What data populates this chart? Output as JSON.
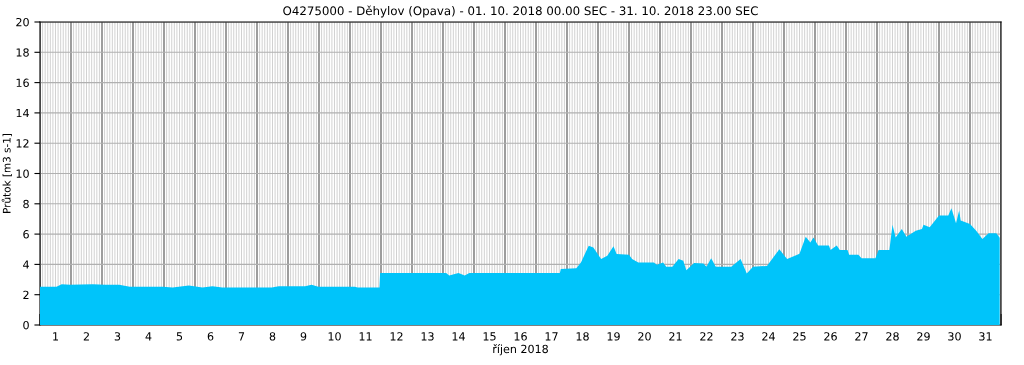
{
  "chart_data": {
    "type": "area",
    "title": "O4275000 - Děhylov (Opava) - 01. 10. 2018 00.00 SEC - 31. 10. 2018 23.00 SEC",
    "xlabel": "říjen 2018",
    "ylabel": "Průtok [m3 s-1]",
    "xlim": [
      1,
      32
    ],
    "ylim": [
      0,
      20
    ],
    "yticks": [
      0,
      2,
      4,
      6,
      8,
      10,
      12,
      14,
      16,
      18,
      20
    ],
    "xticks": [
      {
        "value": 1,
        "label": null
      },
      {
        "value": 1.5,
        "label": "1"
      },
      {
        "value": 2,
        "label": null
      },
      {
        "value": 2.5,
        "label": "2"
      },
      {
        "value": 3,
        "label": null
      },
      {
        "value": 3.5,
        "label": "3"
      },
      {
        "value": 4,
        "label": null
      },
      {
        "value": 4.5,
        "label": "4"
      },
      {
        "value": 5,
        "label": null
      },
      {
        "value": 5.5,
        "label": "5"
      },
      {
        "value": 6,
        "label": null
      },
      {
        "value": 6.5,
        "label": "6"
      },
      {
        "value": 7,
        "label": null
      },
      {
        "value": 7.5,
        "label": "7"
      },
      {
        "value": 8,
        "label": null
      },
      {
        "value": 8.5,
        "label": "8"
      },
      {
        "value": 9,
        "label": null
      },
      {
        "value": 9.5,
        "label": "9"
      },
      {
        "value": 10,
        "label": null
      },
      {
        "value": 10.5,
        "label": "10"
      },
      {
        "value": 11,
        "label": null
      },
      {
        "value": 11.5,
        "label": "11"
      },
      {
        "value": 12,
        "label": null
      },
      {
        "value": 12.5,
        "label": "12"
      },
      {
        "value": 13,
        "label": null
      },
      {
        "value": 13.5,
        "label": "13"
      },
      {
        "value": 14,
        "label": null
      },
      {
        "value": 14.5,
        "label": "14"
      },
      {
        "value": 15,
        "label": null
      },
      {
        "value": 15.5,
        "label": "15"
      },
      {
        "value": 16,
        "label": null
      },
      {
        "value": 16.5,
        "label": "16"
      },
      {
        "value": 17,
        "label": null
      },
      {
        "value": 17.5,
        "label": "17"
      },
      {
        "value": 18,
        "label": null
      },
      {
        "value": 18.5,
        "label": "18"
      },
      {
        "value": 19,
        "label": null
      },
      {
        "value": 19.5,
        "label": "19"
      },
      {
        "value": 20,
        "label": null
      },
      {
        "value": 20.5,
        "label": "20"
      },
      {
        "value": 21,
        "label": null
      },
      {
        "value": 21.5,
        "label": "21"
      },
      {
        "value": 22,
        "label": null
      },
      {
        "value": 22.5,
        "label": "22"
      },
      {
        "value": 23,
        "label": null
      },
      {
        "value": 23.5,
        "label": "23"
      },
      {
        "value": 24,
        "label": null
      },
      {
        "value": 24.5,
        "label": "24"
      },
      {
        "value": 25,
        "label": null
      },
      {
        "value": 25.5,
        "label": "25"
      },
      {
        "value": 26,
        "label": null
      },
      {
        "value": 26.5,
        "label": "26"
      },
      {
        "value": 27,
        "label": null
      },
      {
        "value": 27.5,
        "label": "27"
      },
      {
        "value": 28,
        "label": null
      },
      {
        "value": 28.5,
        "label": "28"
      },
      {
        "value": 29,
        "label": null
      },
      {
        "value": 29.5,
        "label": "29"
      },
      {
        "value": 30,
        "label": null
      },
      {
        "value": 30.5,
        "label": "30"
      },
      {
        "value": 31,
        "label": null
      },
      {
        "value": 31.5,
        "label": "31"
      },
      {
        "value": 32,
        "label": null
      }
    ],
    "grid": true,
    "series": [
      {
        "color": "#00c4fa",
        "x": [
          1.0,
          1.53,
          1.7,
          1.97,
          2.7,
          3.1,
          3.55,
          3.9,
          4.96,
          5.28,
          5.8,
          6.24,
          6.56,
          6.88,
          8.48,
          8.7,
          9.55,
          9.76,
          9.98,
          11.15,
          11.25,
          11.95,
          11.97,
          14.1,
          14.2,
          14.5,
          14.7,
          14.85,
          17.77,
          17.8,
          18.3,
          18.45,
          18.7,
          18.85,
          19.1,
          19.3,
          19.5,
          19.6,
          20.0,
          20.1,
          20.3,
          20.8,
          20.9,
          21.1,
          21.2,
          21.4,
          21.6,
          21.75,
          21.85,
          22.1,
          22.4,
          22.5,
          22.65,
          22.8,
          23.3,
          23.6,
          23.8,
          24.0,
          24.45,
          24.85,
          25.1,
          25.5,
          25.7,
          25.85,
          25.95,
          26.1,
          26.45,
          26.5,
          26.7,
          26.8,
          27.05,
          27.1,
          27.4,
          27.5,
          27.95,
          28.05,
          28.4,
          28.5,
          28.6,
          28.8,
          28.95,
          29.25,
          29.45,
          29.5,
          29.7,
          30.0,
          30.3,
          30.4,
          30.55,
          30.65,
          30.7,
          31.0,
          31.2,
          31.4,
          31.6,
          31.85,
          31.958
        ],
        "values": [
          2.52,
          2.52,
          2.69,
          2.65,
          2.69,
          2.65,
          2.65,
          2.52,
          2.52,
          2.47,
          2.6,
          2.47,
          2.56,
          2.47,
          2.47,
          2.56,
          2.56,
          2.65,
          2.52,
          2.52,
          2.47,
          2.47,
          3.44,
          3.44,
          3.27,
          3.44,
          3.27,
          3.44,
          3.44,
          3.69,
          3.75,
          4.13,
          5.23,
          5.12,
          4.35,
          4.57,
          5.19,
          4.68,
          4.64,
          4.35,
          4.13,
          4.13,
          3.97,
          4.13,
          3.84,
          3.84,
          4.35,
          4.24,
          3.62,
          4.1,
          4.06,
          3.84,
          4.4,
          3.84,
          3.84,
          4.35,
          3.4,
          3.84,
          3.9,
          5.0,
          4.35,
          4.7,
          5.83,
          5.45,
          5.78,
          5.24,
          5.24,
          4.95,
          5.24,
          4.95,
          4.95,
          4.64,
          4.64,
          4.4,
          4.4,
          4.95,
          4.95,
          6.62,
          5.78,
          6.34,
          5.83,
          6.22,
          6.34,
          6.62,
          6.45,
          7.22,
          7.22,
          7.7,
          6.72,
          7.55,
          6.9,
          6.67,
          6.22,
          5.67,
          6.05,
          6.05,
          5.76
        ]
      }
    ]
  }
}
